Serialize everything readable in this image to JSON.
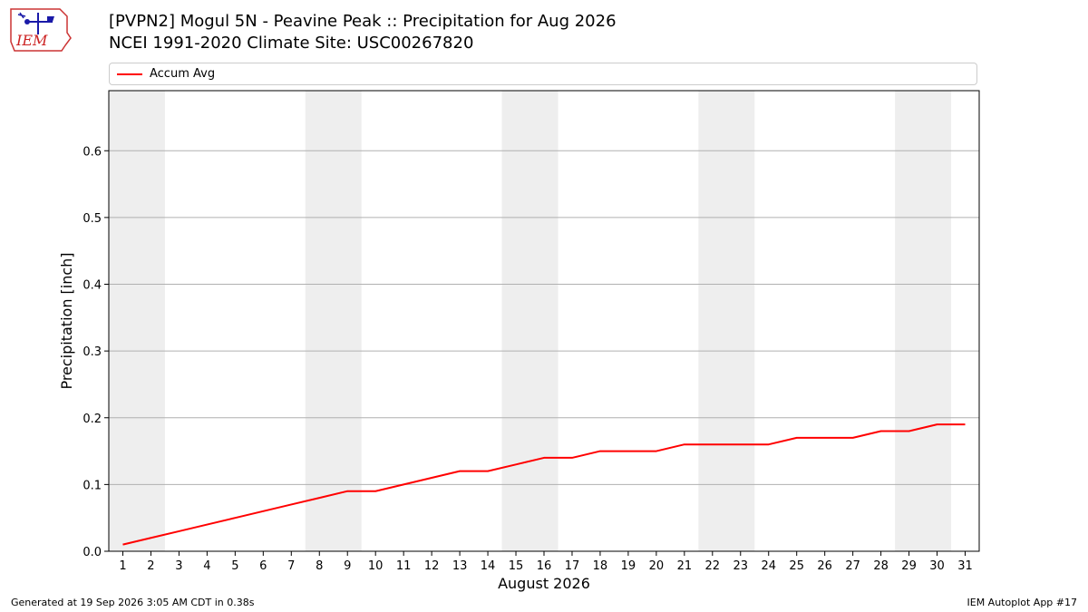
{
  "header": {
    "title_line1": "[PVPN2] Mogul 5N - Peavine Peak :: Precipitation for Aug 2026",
    "title_line2": "NCEI 1991-2020 Climate Site: USC00267820",
    "logo_text": "IEM"
  },
  "footer": {
    "generated": "Generated at 19 Sep 2026 3:05 AM CDT in 0.38s",
    "app": "IEM Autoplot App #17"
  },
  "chart_data": {
    "type": "line",
    "title": "[PVPN2] Mogul 5N - Peavine Peak :: Precipitation for Aug 2026",
    "subtitle": "NCEI 1991-2020 Climate Site: USC00267820",
    "xlabel": "August 2026",
    "ylabel": "Precipitation [inch]",
    "x": [
      1,
      2,
      3,
      4,
      5,
      6,
      7,
      8,
      9,
      10,
      11,
      12,
      13,
      14,
      15,
      16,
      17,
      18,
      19,
      20,
      21,
      22,
      23,
      24,
      25,
      26,
      27,
      28,
      29,
      30,
      31
    ],
    "xlim": [
      0.5,
      31.5
    ],
    "ylim": [
      0,
      0.69
    ],
    "yticks": [
      0.0,
      0.1,
      0.2,
      0.3,
      0.4,
      0.5,
      0.6
    ],
    "ytick_labels": [
      "0.0",
      "0.1",
      "0.2",
      "0.3",
      "0.4",
      "0.5",
      "0.6"
    ],
    "grid": "horizontal",
    "weekend_shading": [
      [
        0.5,
        2.5
      ],
      [
        7.5,
        9.5
      ],
      [
        14.5,
        16.5
      ],
      [
        21.5,
        23.5
      ],
      [
        28.5,
        30.5
      ]
    ],
    "shading_color": "#eeeeee",
    "series": [
      {
        "name": "Accum Avg",
        "color": "#ff0000",
        "values": [
          0.01,
          0.02,
          0.03,
          0.04,
          0.05,
          0.06,
          0.07,
          0.08,
          0.09,
          0.09,
          0.1,
          0.11,
          0.12,
          0.12,
          0.13,
          0.14,
          0.14,
          0.15,
          0.15,
          0.15,
          0.16,
          0.16,
          0.16,
          0.16,
          0.17,
          0.17,
          0.17,
          0.18,
          0.18,
          0.19,
          0.19
        ]
      }
    ],
    "legend": "top"
  }
}
